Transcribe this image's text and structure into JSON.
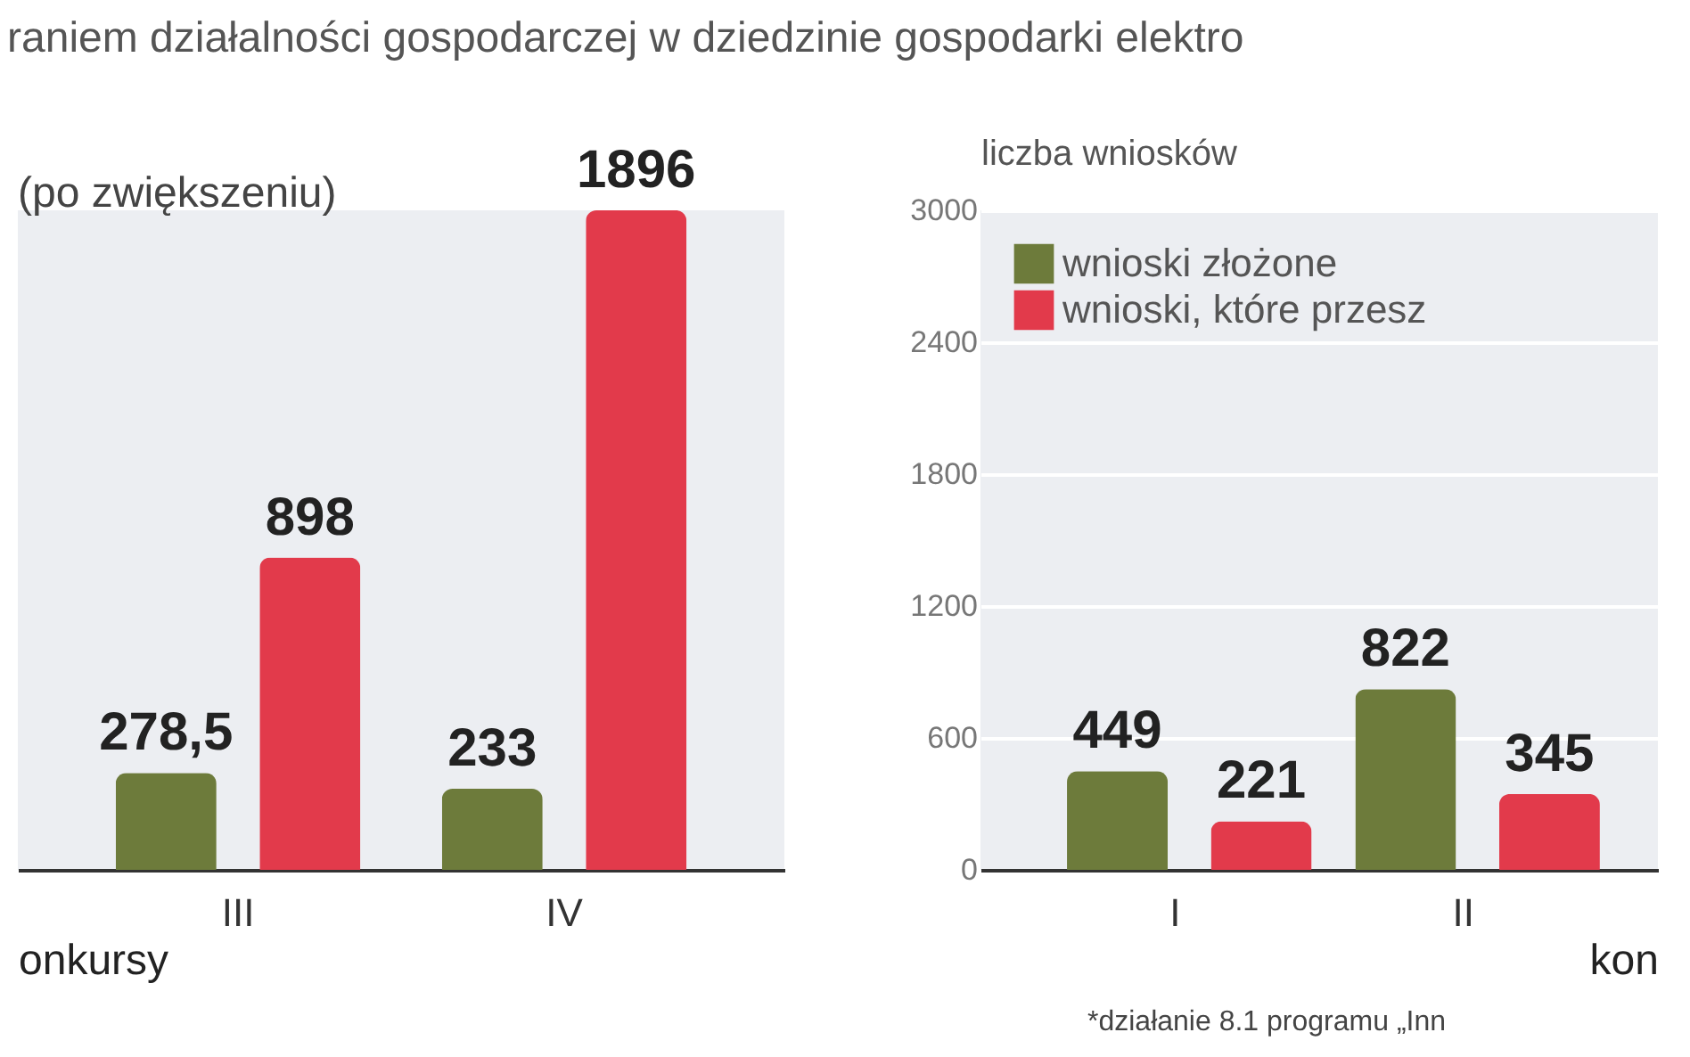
{
  "chart_data": [
    {
      "type": "bar",
      "title": "raniem działalności gospodarczej w dziedzinie gospodarki elektro",
      "xlabel": "onkursy",
      "annotations": [
        "(po zwiększeniu)"
      ],
      "categories": [
        "III",
        "IV"
      ],
      "series": [
        {
          "color": "#6d7b3b",
          "values": [
            278.5,
            233
          ],
          "value_labels": [
            "278,5",
            "233"
          ]
        },
        {
          "color": "#e23a4b",
          "values": [
            898,
            1896
          ],
          "value_labels": [
            "898",
            "1896"
          ]
        }
      ]
    },
    {
      "type": "bar",
      "ylabel": "liczba wniosków",
      "xlabel": "kon",
      "annotations": [
        "*działanie 8.1 programu „Inn"
      ],
      "categories": [
        "I",
        "II"
      ],
      "ylim": [
        0,
        3000
      ],
      "yticks": [
        0,
        600,
        1200,
        1800,
        2400,
        3000
      ],
      "grid": "y",
      "legend": "top left",
      "series": [
        {
          "name": "wnioski złożone",
          "color": "#6d7b3b",
          "values": [
            449,
            822
          ],
          "value_labels": [
            "449",
            "822"
          ]
        },
        {
          "name": "wnioski, które przesz",
          "color": "#e23a4b",
          "values": [
            221,
            345
          ],
          "value_labels": [
            "221",
            "345"
          ]
        }
      ]
    }
  ]
}
